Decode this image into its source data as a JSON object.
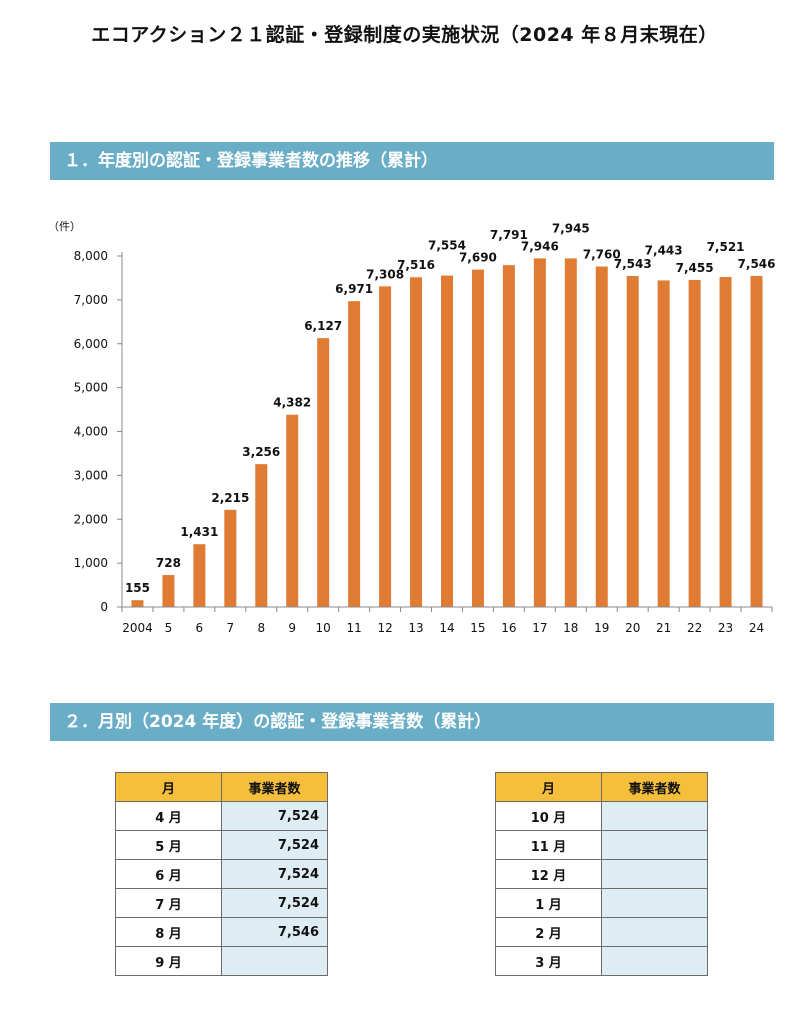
{
  "document": {
    "title": "エコアクション２１認証・登録制度の実施状況（2024 年８月末現在）"
  },
  "section1": {
    "title": "１．年度別の認証・登録事業者数の推移（累計）"
  },
  "section2": {
    "title": "２．月別（2024 年度）の認証・登録事業者数（累計）"
  },
  "chart_data": {
    "type": "bar",
    "title": "",
    "ylabel": "（件）",
    "xlabel": "",
    "categories": [
      "2004",
      "5",
      "6",
      "7",
      "8",
      "9",
      "10",
      "11",
      "12",
      "13",
      "14",
      "15",
      "16",
      "17",
      "18",
      "19",
      "20",
      "21",
      "22",
      "23",
      "24"
    ],
    "values": [
      155,
      728,
      1431,
      2215,
      3256,
      4382,
      6127,
      6971,
      7308,
      7516,
      7554,
      7690,
      7791,
      7946,
      7945,
      7760,
      7543,
      7443,
      7455,
      7521,
      7546
    ],
    "value_labels": [
      "155",
      "728",
      "1,431",
      "2,215",
      "3,256",
      "4,382",
      "6,127",
      "6,971",
      "7,308",
      "7,516",
      "7,554",
      "7,690",
      "7,791",
      "7,946",
      "7,945",
      "7,760",
      "7,543",
      "7,443",
      "7,455",
      "7,521",
      "7,546"
    ],
    "ylim": [
      0,
      8000
    ],
    "yticks": [
      0,
      1000,
      2000,
      3000,
      4000,
      5000,
      6000,
      7000,
      8000
    ],
    "ytick_labels": [
      "0",
      "1,000",
      "2,000",
      "3,000",
      "4,000",
      "5,000",
      "6,000",
      "7,000",
      "8,000"
    ],
    "bar_color": "#e07b33",
    "grid": false,
    "legend": "none"
  },
  "table_left": {
    "headers": [
      "月",
      "事業者数"
    ],
    "rows": [
      {
        "month": "4 月",
        "count": "7,524"
      },
      {
        "month": "5 月",
        "count": "7,524"
      },
      {
        "month": "6 月",
        "count": "7,524"
      },
      {
        "month": "7 月",
        "count": "7,524"
      },
      {
        "month": "8 月",
        "count": "7,546"
      },
      {
        "month": "9 月",
        "count": ""
      }
    ]
  },
  "table_right": {
    "headers": [
      "月",
      "事業者数"
    ],
    "rows": [
      {
        "month": "10 月",
        "count": ""
      },
      {
        "month": "11 月",
        "count": ""
      },
      {
        "month": "12 月",
        "count": ""
      },
      {
        "month": "1 月",
        "count": ""
      },
      {
        "month": "2 月",
        "count": ""
      },
      {
        "month": "3 月",
        "count": ""
      }
    ]
  },
  "colors": {
    "section_bar": "#6aadc6",
    "table_header": "#f5bf3c",
    "table_value_cell": "#deedf3"
  }
}
